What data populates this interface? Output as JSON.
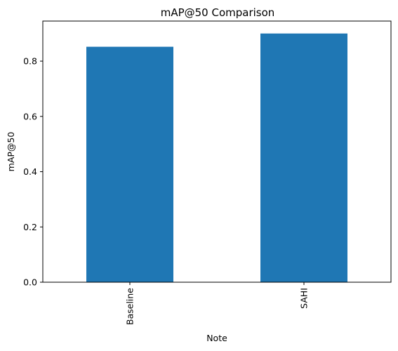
{
  "chart_data": {
    "type": "bar",
    "title": "mAP@50 Comparison",
    "xlabel": "Note",
    "ylabel": "mAP@50",
    "categories": [
      "Baseline",
      "SAHI"
    ],
    "values": [
      0.852,
      0.9
    ],
    "ylim": [
      0,
      0.945
    ],
    "yticks": [
      0.0,
      0.2,
      0.4,
      0.6,
      0.8
    ],
    "ytick_labels": [
      "0.0",
      "0.2",
      "0.4",
      "0.6",
      "0.8"
    ],
    "bar_color": "#1f77b4",
    "grid": false,
    "legend": "none"
  }
}
